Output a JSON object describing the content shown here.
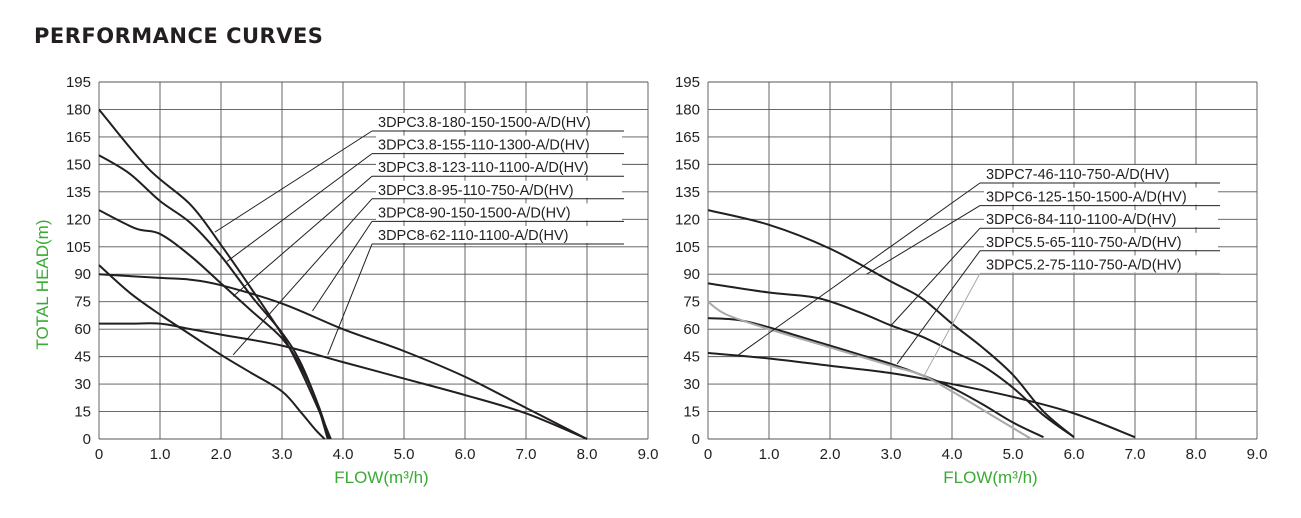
{
  "page": {
    "title": "PERFORMANCE CURVES"
  },
  "colors": {
    "curve": "#231f20",
    "curve_light": "#a7a9ac",
    "axis_title": "#3aaa35",
    "grid": "#555555"
  },
  "chart_data": [
    {
      "type": "line",
      "title": "",
      "xlabel": "FLOW(m³/h)",
      "ylabel": "TOTAL HEAD(m)",
      "xlim": [
        0,
        9
      ],
      "ylim": [
        0,
        195
      ],
      "x_ticks": [
        0,
        1,
        2,
        3,
        4,
        5,
        6,
        7,
        8,
        9
      ],
      "x_tick_labels": [
        "0",
        "1.0",
        "2.0",
        "3.0",
        "4.0",
        "5.0",
        "6.0",
        "7.0",
        "8.0",
        "9.0"
      ],
      "y_ticks": [
        0,
        15,
        30,
        45,
        60,
        75,
        90,
        105,
        120,
        135,
        150,
        165,
        180,
        195
      ],
      "y_tick_labels": [
        "0",
        "15",
        "30",
        "45",
        "60",
        "75",
        "90",
        "105",
        "120",
        "135",
        "150",
        "165",
        "180",
        "195"
      ],
      "grid": true,
      "series": [
        {
          "name": "3DPC3.8-180-150-1500-A/D(HV)",
          "points": [
            [
              0,
              180
            ],
            [
              0.8,
              148
            ],
            [
              1.5,
              128
            ],
            [
              2.0,
              106
            ],
            [
              2.5,
              82
            ],
            [
              3.0,
              57
            ],
            [
              3.3,
              38
            ],
            [
              3.6,
              16
            ],
            [
              3.8,
              0
            ]
          ],
          "label_anchor": [
            1.9,
            113
          ]
        },
        {
          "name": "3DPC3.8-155-110-1300-A/D(HV)",
          "points": [
            [
              0,
              155
            ],
            [
              0.5,
              145
            ],
            [
              1.0,
              130
            ],
            [
              1.5,
              118
            ],
            [
              2.0,
              100
            ],
            [
              2.5,
              78
            ],
            [
              3.0,
              58
            ],
            [
              3.3,
              42
            ],
            [
              3.6,
              18
            ],
            [
              3.78,
              0
            ]
          ],
          "label_anchor": [
            2.1,
            97
          ]
        },
        {
          "name": "3DPC3.8-123-110-1100-A/D(HV)",
          "points": [
            [
              0,
              125
            ],
            [
              0.6,
              115
            ],
            [
              1.0,
              112
            ],
            [
              1.5,
              100
            ],
            [
              2.0,
              85
            ],
            [
              2.5,
              70
            ],
            [
              3.0,
              55
            ],
            [
              3.3,
              40
            ],
            [
              3.55,
              22
            ],
            [
              3.75,
              0
            ]
          ],
          "label_anchor": [
            2.2,
            78
          ]
        },
        {
          "name": "3DPC3.8-95-110-750-A/D(HV)",
          "points": [
            [
              0,
              95
            ],
            [
              0.5,
              80
            ],
            [
              1.0,
              68
            ],
            [
              1.5,
              57
            ],
            [
              2.0,
              46
            ],
            [
              2.5,
              36
            ],
            [
              3.0,
              26
            ],
            [
              3.3,
              15
            ],
            [
              3.55,
              5
            ],
            [
              3.7,
              0
            ]
          ],
          "label_anchor": [
            2.2,
            46
          ]
        },
        {
          "name": "3DPC8-90-150-1500-A/D(HV)",
          "points": [
            [
              0,
              90
            ],
            [
              1.0,
              88
            ],
            [
              1.5,
              87
            ],
            [
              2.0,
              84
            ],
            [
              3.0,
              74
            ],
            [
              4.0,
              60
            ],
            [
              5.0,
              48
            ],
            [
              6.0,
              34
            ],
            [
              7.0,
              17
            ],
            [
              8.0,
              0
            ]
          ],
          "label_anchor": [
            3.5,
            70
          ]
        },
        {
          "name": "3DPC8-62-110-1100-A/D(HV)",
          "points": [
            [
              0,
              63
            ],
            [
              0.5,
              63
            ],
            [
              1.0,
              63
            ],
            [
              1.5,
              60
            ],
            [
              2.0,
              57
            ],
            [
              3.0,
              51
            ],
            [
              4.0,
              42
            ],
            [
              5.0,
              33
            ],
            [
              6.0,
              24
            ],
            [
              7.0,
              14
            ],
            [
              8.0,
              0
            ]
          ],
          "label_anchor": [
            3.75,
            46
          ]
        }
      ]
    },
    {
      "type": "line",
      "title": "",
      "xlabel": "FLOW(m³/h)",
      "ylabel": "",
      "xlim": [
        0,
        9
      ],
      "ylim": [
        0,
        195
      ],
      "x_ticks": [
        0,
        1,
        2,
        3,
        4,
        5,
        6,
        7,
        8,
        9
      ],
      "x_tick_labels": [
        "0",
        "1.0",
        "2.0",
        "3.0",
        "4.0",
        "5.0",
        "6.0",
        "7.0",
        "8.0",
        "9.0"
      ],
      "y_ticks": [
        0,
        15,
        30,
        45,
        60,
        75,
        90,
        105,
        120,
        135,
        150,
        165,
        180,
        195
      ],
      "y_tick_labels": [
        "0",
        "15",
        "30",
        "45",
        "60",
        "75",
        "90",
        "105",
        "120",
        "135",
        "150",
        "165",
        "180",
        "195"
      ],
      "grid": true,
      "series": [
        {
          "name": "3DPC7-46-110-750-A/D(HV)",
          "points": [
            [
              0,
              47
            ],
            [
              1.0,
              44
            ],
            [
              2.0,
              40
            ],
            [
              3.0,
              36
            ],
            [
              4.0,
              30
            ],
            [
              5.0,
              23
            ],
            [
              6.0,
              14
            ],
            [
              7.0,
              1
            ]
          ],
          "label_anchor": [
            0.5,
            46
          ]
        },
        {
          "name": "3DPC6-125-150-1500-A/D(HV)",
          "points": [
            [
              0,
              125
            ],
            [
              1.0,
              117
            ],
            [
              2.0,
              104
            ],
            [
              3.0,
              86
            ],
            [
              3.5,
              77
            ],
            [
              4.0,
              63
            ],
            [
              4.5,
              50
            ],
            [
              5.0,
              35
            ],
            [
              5.5,
              15
            ],
            [
              6.0,
              1
            ]
          ],
          "label_anchor": [
            2.6,
            90
          ]
        },
        {
          "name": "3DPC6-84-110-1100-A/D(HV)",
          "points": [
            [
              0,
              85
            ],
            [
              1.0,
              80
            ],
            [
              1.8,
              77
            ],
            [
              2.5,
              69
            ],
            [
              3.0,
              62
            ],
            [
              3.5,
              56
            ],
            [
              4.0,
              48
            ],
            [
              4.5,
              40
            ],
            [
              5.0,
              28
            ],
            [
              5.5,
              13
            ],
            [
              6.0,
              1
            ]
          ],
          "label_anchor": [
            3.0,
            62
          ]
        },
        {
          "name": "3DPC5.5-65-110-750-A/D(HV)",
          "points": [
            [
              0,
              66
            ],
            [
              0.5,
              65
            ],
            [
              1.0,
              61
            ],
            [
              1.5,
              56
            ],
            [
              2.0,
              51
            ],
            [
              2.5,
              46
            ],
            [
              3.0,
              41
            ],
            [
              3.5,
              35
            ],
            [
              4.0,
              28
            ],
            [
              4.5,
              19
            ],
            [
              5.0,
              9
            ],
            [
              5.5,
              1
            ]
          ],
          "label_anchor": [
            3.1,
            41
          ]
        },
        {
          "name": "3DPC5.2-75-110-750-A/D(HV)",
          "points": [
            [
              0,
              75
            ],
            [
              0.3,
              68
            ],
            [
              1.0,
              60
            ],
            [
              2.0,
              50
            ],
            [
              3.0,
              40
            ],
            [
              3.5,
              35
            ],
            [
              4.0,
              26
            ],
            [
              4.5,
              16
            ],
            [
              5.0,
              6
            ],
            [
              5.3,
              0
            ]
          ],
          "label_anchor": [
            3.55,
            35
          ],
          "light": true
        }
      ]
    }
  ]
}
